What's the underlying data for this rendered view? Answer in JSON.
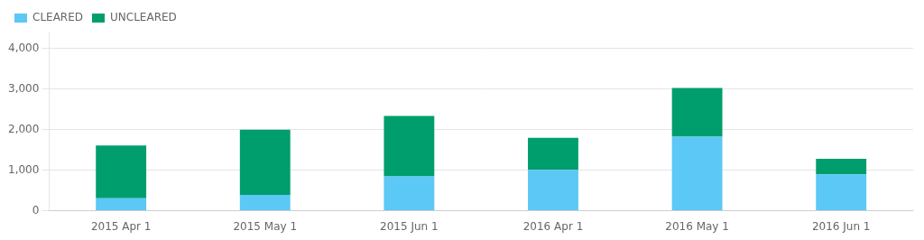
{
  "chart_data": {
    "type": "bar",
    "stacked": true,
    "categories": [
      "2015 Apr 1",
      "2015 May 1",
      "2015 Jun 1",
      "2016 Apr 1",
      "2016 May 1",
      "2016 Jun 1"
    ],
    "series": [
      {
        "name": "CLEARED",
        "color": "#5bc8f5",
        "values": [
          310,
          390,
          850,
          1010,
          1830,
          900
        ]
      },
      {
        "name": "UNCLEARED",
        "color": "#009e6d",
        "values": [
          1300,
          1610,
          1490,
          790,
          1200,
          380
        ]
      }
    ],
    "ylim": [
      0,
      4400
    ],
    "yticks": [
      0,
      {
        "value": 1000,
        "label": "1,000"
      },
      {
        "value": 2000,
        "label": "2,000"
      },
      {
        "value": 3000,
        "label": "3,000"
      },
      {
        "value": 4000,
        "label": "4,000"
      }
    ],
    "grid": true,
    "legend": "upper left"
  }
}
